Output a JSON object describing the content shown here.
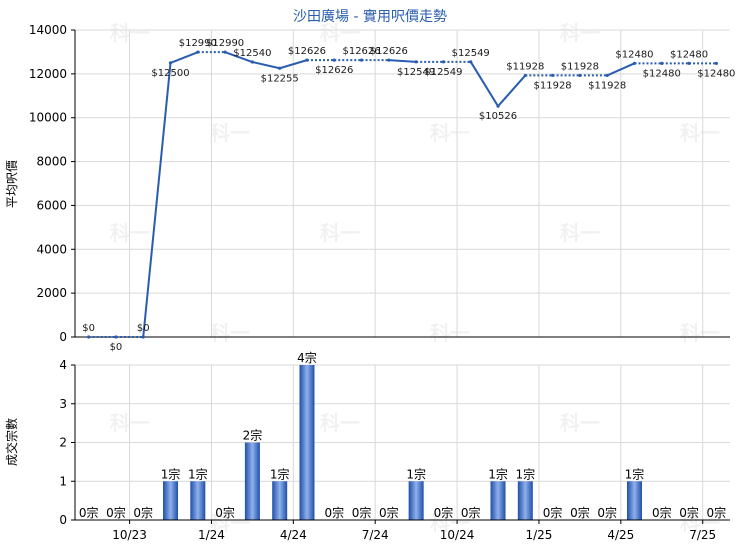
{
  "chart_data": [
    {
      "type": "line",
      "title": "沙田廣場 - 實用呎價走勢",
      "ylabel": "平均呎價",
      "ylim": [
        0,
        14000
      ],
      "yticks": [
        0,
        2000,
        4000,
        6000,
        8000,
        10000,
        12000,
        14000
      ],
      "grid": true,
      "points": [
        {
          "label": "$0",
          "value": 0,
          "link": "dotted"
        },
        {
          "label": "$0",
          "value": 0,
          "link": "dotted"
        },
        {
          "label": "$0",
          "value": 0,
          "link": "solid"
        },
        {
          "label": "$12500",
          "value": 12500,
          "link": "solid"
        },
        {
          "label": "$12990",
          "value": 12990,
          "link": "dotted"
        },
        {
          "label": "$12990",
          "value": 12990,
          "link": "solid"
        },
        {
          "label": "$12540",
          "value": 12540,
          "link": "solid"
        },
        {
          "label": "$12255",
          "value": 12255,
          "link": "solid"
        },
        {
          "label": "$12626",
          "value": 12626,
          "link": "dotted"
        },
        {
          "label": "$12626",
          "value": 12626,
          "link": "dotted"
        },
        {
          "label": "$12626",
          "value": 12626,
          "link": "dotted"
        },
        {
          "label": "$12626",
          "value": 12626,
          "link": "solid"
        },
        {
          "label": "$12549",
          "value": 12549,
          "link": "dotted"
        },
        {
          "label": "$12549",
          "value": 12549,
          "link": "dotted"
        },
        {
          "label": "$12549",
          "value": 12549,
          "link": "solid"
        },
        {
          "label": "$10526",
          "value": 10526,
          "link": "solid"
        },
        {
          "label": "$11928",
          "value": 11928,
          "link": "dotted"
        },
        {
          "label": "$11928",
          "value": 11928,
          "link": "dotted"
        },
        {
          "label": "$11928",
          "value": 11928,
          "link": "dotted"
        },
        {
          "label": "$11928",
          "value": 11928,
          "link": "solid"
        },
        {
          "label": "$12480",
          "value": 12480,
          "link": "dotted"
        },
        {
          "label": "$12480",
          "value": 12480,
          "link": "dotted"
        },
        {
          "label": "$12480",
          "value": 12480,
          "link": "dotted"
        },
        {
          "label": "$12480",
          "value": 12480,
          "link": "none"
        }
      ]
    },
    {
      "type": "bar",
      "ylabel": "成交宗數",
      "ylim": [
        0,
        4
      ],
      "yticks": [
        0,
        1,
        2,
        3,
        4
      ],
      "grid": true,
      "unit": "宗",
      "values": [
        0,
        0,
        0,
        1,
        1,
        0,
        2,
        1,
        4,
        0,
        0,
        0,
        1,
        0,
        0,
        1,
        1,
        0,
        0,
        0,
        1,
        0,
        0,
        0
      ],
      "x_tick_labels": [
        {
          "label": "10/23",
          "after_index": 1
        },
        {
          "label": "1/24",
          "after_index": 4
        },
        {
          "label": "4/24",
          "after_index": 7
        },
        {
          "label": "7/24",
          "after_index": 10
        },
        {
          "label": "10/24",
          "after_index": 13
        },
        {
          "label": "1/25",
          "after_index": 16
        },
        {
          "label": "4/25",
          "after_index": 19
        },
        {
          "label": "7/25",
          "after_index": 22
        }
      ]
    }
  ],
  "colors": {
    "line": "#2a5db0",
    "bar_dark": "#1f4fa8",
    "bar_light": "#8fb0ec",
    "grid": "#d9d9d9",
    "title": "#2a5db0"
  },
  "watermark": "科一"
}
